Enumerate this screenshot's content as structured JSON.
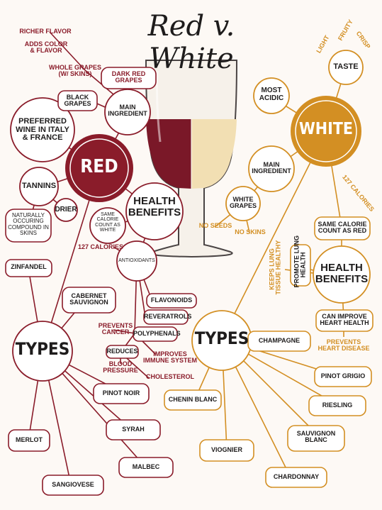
{
  "title": "Red v. White",
  "red": {
    "hub": "RED",
    "flavor_notes": [
      "RICHER FLAVOR",
      "ADDS COLOR\n& FLAVOR",
      "WHOLE GRAPES\n(W/ SKINS)"
    ],
    "main_ingredient": "MAIN\nINGREDIENT",
    "ingredients": [
      "DARK RED\nGRAPES",
      "BLACK\nGRAPES"
    ],
    "preferred": "PREFERRED\nWINE IN ITALY\n& FRANCE",
    "tannins": "TANNINS",
    "drier": "DRIER",
    "tannins_note": "NATURALLY\nOCCURING\nCOMPOUND IN\nSKINS",
    "health": "HEALTH\nBENEFITS",
    "same_calorie": "SAME\nCALORIE\nCOUNT AS\nWHITE",
    "calories": "127 CALORIES",
    "antioxidants": "ANTIOXIDANTS",
    "antioxidant_items": [
      "FLAVONOIDS",
      "REVERATROLS",
      "POLYPHENALS"
    ],
    "polyphenal_effects": [
      "PREVENTS\nCANCER",
      "IMPROVES\nIMMUNE SYSTEM"
    ],
    "reduces": "REDUCES",
    "reduces_effects": [
      "BLOOD\nPRESSURE",
      "CHOLESTEROL"
    ],
    "types_label": "TYPES",
    "types": [
      "ZINFANDEL",
      "CABERNET\nSAUVIGNON",
      "PINOT NOIR",
      "SYRAH",
      "MALBEC",
      "SANGIOVESE",
      "MERLOT"
    ]
  },
  "white": {
    "hub": "WHITE",
    "taste": "TASTE",
    "taste_notes": [
      "LIGHT",
      "FRUITY",
      "CRISP"
    ],
    "most_acidic": "MOST\nACIDIC",
    "main_ingredient": "MAIN\nINGREDIENT",
    "white_grapes": "WHITE\nGRAPES",
    "grape_notes": [
      "NO SEEDS",
      "NO SKINS"
    ],
    "calories": "127 CALORIES",
    "same_calorie": "SAME CALORIE\nCOUNT AS RED",
    "health": "HEALTH\nBENEFITS",
    "lung_notes": [
      "KEEPS LUNG\nTISSUE HEALTHY",
      "PROMOTE LUNG\nHEALTH"
    ],
    "heart": "CAN IMPROVE\nHEART HEALTH",
    "heart_note": "PREVENTS\nHEART DISEASE",
    "types_label": "TYPES",
    "types": [
      "CHAMPAGNE",
      "PINOT GRIGIO",
      "RIESLING",
      "SAUVIGNON\nBLANC",
      "CHARDONNAY",
      "VIOGNIER",
      "CHENIN BLANC"
    ]
  },
  "colors": {
    "red": "#8a1c2a",
    "gold": "#d38f23",
    "dark": "#1e1c1c",
    "background": "#fdf9f5"
  }
}
